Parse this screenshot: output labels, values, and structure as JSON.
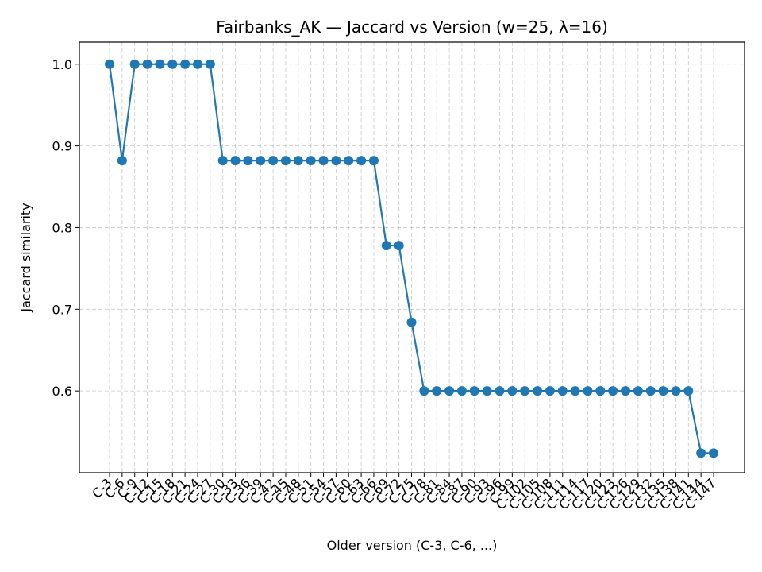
{
  "chart_data": {
    "type": "line",
    "title": "Fairbanks_AK — Jaccard vs Version (w=25, λ=16)",
    "xlabel": "Older version (C-3, C-6, ...)",
    "ylabel": "Jaccard similarity",
    "grid": true,
    "ylim": [
      0.5,
      1.027
    ],
    "y_ticks": [
      "0.6",
      "0.7",
      "0.8",
      "0.9",
      "1.0"
    ],
    "y_tick_values": [
      0.6,
      0.7,
      0.8,
      0.9,
      1.0
    ],
    "categories": [
      "C-3",
      "C-6",
      "C-9",
      "C-12",
      "C-15",
      "C-18",
      "C-21",
      "C-24",
      "C-27",
      "C-30",
      "C-33",
      "C-36",
      "C-39",
      "C-42",
      "C-45",
      "C-48",
      "C-51",
      "C-54",
      "C-57",
      "C-60",
      "C-63",
      "C-66",
      "C-69",
      "C-72",
      "C-75",
      "C-78",
      "C-81",
      "C-84",
      "C-87",
      "C-90",
      "C-93",
      "C-96",
      "C-99",
      "C-102",
      "C-105",
      "C-108",
      "C-111",
      "C-114",
      "C-117",
      "C-120",
      "C-123",
      "C-126",
      "C-129",
      "C-132",
      "C-135",
      "C-138",
      "C-141",
      "C-144",
      "C-147"
    ],
    "series": [
      {
        "color": "#1f77b4",
        "values": [
          1.0,
          0.882,
          1.0,
          1.0,
          1.0,
          1.0,
          1.0,
          1.0,
          1.0,
          0.882,
          0.882,
          0.882,
          0.882,
          0.882,
          0.882,
          0.882,
          0.882,
          0.882,
          0.882,
          0.882,
          0.882,
          0.882,
          0.778,
          0.778,
          0.684,
          0.6,
          0.6,
          0.6,
          0.6,
          0.6,
          0.6,
          0.6,
          0.6,
          0.6,
          0.6,
          0.6,
          0.6,
          0.6,
          0.6,
          0.6,
          0.6,
          0.6,
          0.6,
          0.6,
          0.6,
          0.6,
          0.6,
          0.524,
          0.524
        ]
      }
    ]
  }
}
